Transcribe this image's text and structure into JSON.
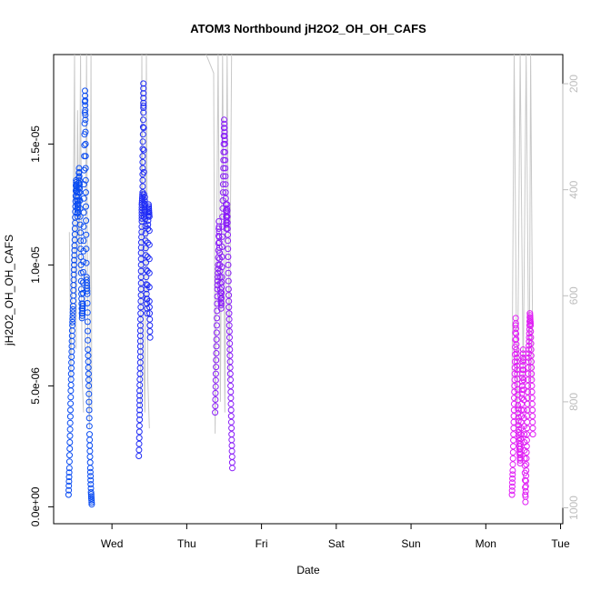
{
  "chart_data": {
    "type": "scatter",
    "title": "ATOM3 Northbound jH2O2_OH_OH_CAFS",
    "xlabel": "Date",
    "ylabel": "jH2O2_OH_OH_CAFS",
    "x_ticks": [
      "Wed",
      "Thu",
      "Fri",
      "Sat",
      "Sun",
      "Mon",
      "Tue"
    ],
    "x_tick_days": [
      1,
      2,
      3,
      4,
      5,
      6,
      7
    ],
    "xlim_days": [
      0.22,
      7.03
    ],
    "y_ticks": [
      {
        "value": 0.0,
        "label": "0.0e+00"
      },
      {
        "value": 5e-06,
        "label": "5.0e-06"
      },
      {
        "value": 1e-05,
        "label": "1.0e-05"
      },
      {
        "value": 1.5e-05,
        "label": "1.5e-05"
      }
    ],
    "ylim": [
      -7e-07,
      1.87e-05
    ],
    "y2_ticks": [
      200,
      400,
      600,
      800,
      1000
    ],
    "y2lim_reversed": [
      1030,
      145
    ],
    "y2_color": "#bdbdbd",
    "marker": "open-circle",
    "series": [
      {
        "color": "#0a4cf2",
        "points": [
          [
            0.42,
            5e-07
          ],
          [
            0.43,
            1.6e-06
          ],
          [
            0.44,
            3.2e-06
          ],
          [
            0.45,
            4.8e-06
          ],
          [
            0.46,
            6.2e-06
          ],
          [
            0.47,
            7.5e-06
          ],
          [
            0.48,
            8.3e-06
          ],
          [
            0.49,
            9.6e-06
          ],
          [
            0.5,
            1.08e-05
          ],
          [
            0.51,
            1.22e-05
          ],
          [
            0.52,
            1.35e-05
          ],
          [
            0.53,
            1.3e-05
          ],
          [
            0.54,
            1.2e-05
          ],
          [
            0.55,
            1.28e-05
          ],
          [
            0.56,
            1.4e-05
          ],
          [
            0.57,
            1.3e-05
          ],
          [
            0.58,
            1.1e-05
          ],
          [
            0.59,
            9e-06
          ],
          [
            0.6,
            7.8e-06
          ],
          [
            0.61,
            8.4e-06
          ],
          [
            0.62,
            1.1e-05
          ],
          [
            0.63,
            1.45e-05
          ],
          [
            0.64,
            1.72e-05
          ],
          [
            0.645,
            1.6e-05
          ],
          [
            0.65,
            1.3e-05
          ],
          [
            0.66,
            9.5e-06
          ],
          [
            0.67,
            8.8e-06
          ],
          [
            0.68,
            6.5e-06
          ],
          [
            0.69,
            5e-06
          ],
          [
            0.7,
            3e-06
          ],
          [
            0.71,
            1.6e-06
          ],
          [
            0.72,
            6e-07
          ],
          [
            0.73,
            1e-07
          ]
        ]
      },
      {
        "color": "#1f2cf6",
        "points": [
          [
            1.36,
            2.1e-06
          ],
          [
            1.37,
            3.6e-06
          ],
          [
            1.37,
            4.8e-06
          ],
          [
            1.38,
            6.2e-06
          ],
          [
            1.38,
            7.5e-06
          ],
          [
            1.39,
            9e-06
          ],
          [
            1.39,
            1.05e-05
          ],
          [
            1.4,
            1.18e-05
          ],
          [
            1.4,
            1.25e-05
          ],
          [
            1.41,
            1.3e-05
          ],
          [
            1.41,
            1.45e-05
          ],
          [
            1.42,
            1.63e-05
          ],
          [
            1.42,
            1.75e-05
          ],
          [
            1.43,
            1.2e-05
          ],
          [
            1.44,
            1.28e-05
          ],
          [
            1.45,
            1.1e-05
          ],
          [
            1.46,
            9.2e-06
          ],
          [
            1.47,
            8e-06
          ],
          [
            1.48,
            1.15e-05
          ],
          [
            1.49,
            1.25e-05
          ],
          [
            1.5,
            1.2e-05
          ],
          [
            1.5,
            8.5e-06
          ],
          [
            1.51,
            7e-06
          ]
        ]
      },
      {
        "color": "#8a1ef8",
        "points": [
          [
            2.38,
            3.9e-06
          ],
          [
            2.39,
            5.5e-06
          ],
          [
            2.4,
            7.2e-06
          ],
          [
            2.41,
            9e-06
          ],
          [
            2.42,
            1e-05
          ],
          [
            2.43,
            1.18e-05
          ],
          [
            2.44,
            1.05e-05
          ],
          [
            2.45,
            9e-06
          ],
          [
            2.46,
            8.2e-06
          ],
          [
            2.47,
            9.5e-06
          ],
          [
            2.48,
            1.2e-05
          ],
          [
            2.49,
            1.4e-05
          ],
          [
            2.5,
            1.6e-05
          ],
          [
            2.51,
            1.5e-05
          ],
          [
            2.52,
            1.3e-05
          ],
          [
            2.53,
            1.15e-05
          ],
          [
            2.54,
            1.25e-05
          ],
          [
            2.55,
            1.1e-05
          ],
          [
            2.56,
            9e-06
          ],
          [
            2.57,
            7.5e-06
          ],
          [
            2.58,
            6e-06
          ],
          [
            2.59,
            4.5e-06
          ],
          [
            2.6,
            3e-06
          ],
          [
            2.61,
            1.6e-06
          ]
        ]
      },
      {
        "color": "#e01ef5",
        "points": [
          [
            6.35,
            5e-07
          ],
          [
            6.36,
            1.5e-06
          ],
          [
            6.37,
            3e-06
          ],
          [
            6.38,
            4.5e-06
          ],
          [
            6.39,
            6e-06
          ],
          [
            6.4,
            7.8e-06
          ],
          [
            6.41,
            6.5e-06
          ],
          [
            6.42,
            5.5e-06
          ],
          [
            6.43,
            4.2e-06
          ],
          [
            6.44,
            3.2e-06
          ],
          [
            6.45,
            2.5e-06
          ],
          [
            6.46,
            1.8e-06
          ],
          [
            6.47,
            3e-06
          ],
          [
            6.48,
            4.5e-06
          ],
          [
            6.49,
            5.5e-06
          ],
          [
            6.5,
            6.5e-06
          ],
          [
            6.51,
            4e-06
          ],
          [
            6.52,
            2e-06
          ],
          [
            6.53,
            2e-07
          ],
          [
            6.54,
            1.5e-06
          ],
          [
            6.55,
            3e-06
          ],
          [
            6.56,
            4.5e-06
          ],
          [
            6.57,
            6e-06
          ],
          [
            6.58,
            7e-06
          ],
          [
            6.59,
            8e-06
          ],
          [
            6.6,
            7.5e-06
          ],
          [
            6.61,
            6e-06
          ],
          [
            6.62,
            4.5e-06
          ],
          [
            6.63,
            3e-06
          ]
        ]
      }
    ],
    "y2_series": {
      "color": "#c8c8c8",
      "segments": [
        [
          [
            0.43,
            480
          ],
          [
            0.45,
            760
          ],
          [
            0.47,
            560
          ],
          [
            0.49,
            330
          ],
          [
            0.5,
            145
          ],
          [
            0.51,
            600
          ]
        ],
        [
          [
            0.52,
            700
          ],
          [
            0.54,
            250
          ],
          [
            0.56,
            560
          ],
          [
            0.58,
            145
          ],
          [
            0.6,
            750
          ],
          [
            0.62,
            820
          ]
        ],
        [
          [
            0.64,
            700
          ],
          [
            0.66,
            145
          ],
          [
            0.68,
            760
          ],
          [
            0.7,
            850
          ],
          [
            0.72,
            145
          ],
          [
            0.73,
            820
          ]
        ],
        [
          [
            1.38,
            810
          ],
          [
            1.4,
            145
          ],
          [
            1.42,
            700
          ],
          [
            1.44,
            820
          ],
          [
            1.46,
            145
          ],
          [
            1.48,
            760
          ],
          [
            1.5,
            850
          ]
        ],
        [
          [
            2.26,
            145
          ],
          [
            2.36,
            180
          ],
          [
            2.38,
            860
          ],
          [
            2.42,
            145
          ],
          [
            2.45,
            800
          ],
          [
            2.48,
            145
          ],
          [
            2.51,
            820
          ],
          [
            2.54,
            145
          ],
          [
            2.57,
            760
          ],
          [
            2.6,
            145
          ]
        ],
        [
          [
            6.35,
            780
          ],
          [
            6.38,
            145
          ],
          [
            6.42,
            860
          ],
          [
            6.46,
            145
          ],
          [
            6.5,
            760
          ],
          [
            6.54,
            145
          ],
          [
            6.58,
            830
          ],
          [
            6.6,
            145
          ],
          [
            6.63,
            760
          ]
        ]
      ]
    }
  }
}
